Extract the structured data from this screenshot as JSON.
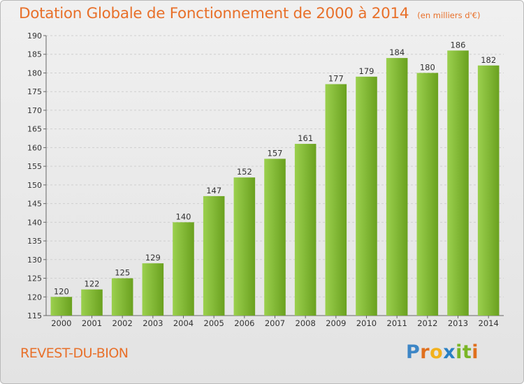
{
  "title": "Dotation Globale de Fonctionnement de 2000 à 2014",
  "unit": "(en milliers d'€)",
  "commune": "REVEST-DU-BION",
  "logo": {
    "letters": [
      "P",
      "r",
      "o",
      "x",
      "i",
      "t",
      "i"
    ],
    "colors": [
      "#3d86c6",
      "#e0701e",
      "#f2b11c",
      "#2a80c4",
      "#7ab526",
      "#7ab526",
      "#e0701e"
    ]
  },
  "colors": {
    "accent": "#e8702a",
    "bar_light": "#9bd04e",
    "bar_dark": "#6aa11f"
  },
  "chart_data": {
    "type": "bar",
    "title": "Dotation Globale de Fonctionnement de 2000 à 2014",
    "categories": [
      "2000",
      "2001",
      "2002",
      "2003",
      "2004",
      "2005",
      "2006",
      "2007",
      "2008",
      "2009",
      "2010",
      "2011",
      "2012",
      "2013",
      "2014"
    ],
    "values": [
      120,
      122,
      125,
      129,
      140,
      147,
      152,
      157,
      161,
      177,
      179,
      184,
      180,
      186,
      182
    ],
    "ylim": [
      115,
      190
    ],
    "yticks": [
      115,
      120,
      125,
      130,
      135,
      140,
      145,
      150,
      155,
      160,
      165,
      170,
      175,
      180,
      185,
      190
    ],
    "grid": true,
    "xlabel": "",
    "ylabel": ""
  }
}
